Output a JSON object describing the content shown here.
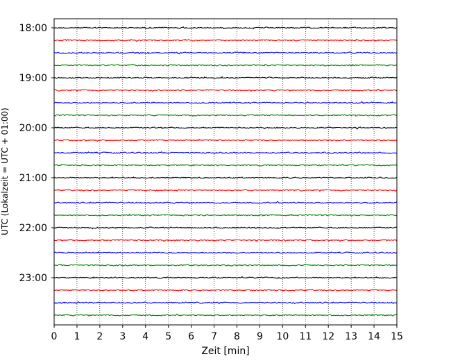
{
  "chart_data": {
    "type": "line",
    "title": "",
    "xlabel": "Zeit  [min]",
    "ylabel": "UTC (Lokalzeit = UTC + 01:00)",
    "xlim": [
      0,
      15
    ],
    "x_ticks": [
      0,
      1,
      2,
      3,
      4,
      5,
      6,
      7,
      8,
      9,
      10,
      11,
      12,
      13,
      14,
      15
    ],
    "x_tick_labels": [
      "0",
      "1",
      "2",
      "3",
      "4",
      "5",
      "6",
      "7",
      "8",
      "9",
      "10",
      "11",
      "12",
      "13",
      "14",
      "15"
    ],
    "y_tick_labels": [
      "18:00",
      "19:00",
      "20:00",
      "21:00",
      "22:00",
      "23:00"
    ],
    "grid": "vertical dotted at each minute",
    "trace_interval_minutes": 15,
    "traces": [
      {
        "start": "18:00",
        "color": "#000000"
      },
      {
        "start": "18:15",
        "color": "#ff0000"
      },
      {
        "start": "18:30",
        "color": "#0000ff"
      },
      {
        "start": "18:45",
        "color": "#008000"
      },
      {
        "start": "19:00",
        "color": "#000000"
      },
      {
        "start": "19:15",
        "color": "#ff0000"
      },
      {
        "start": "19:30",
        "color": "#0000ff"
      },
      {
        "start": "19:45",
        "color": "#008000"
      },
      {
        "start": "20:00",
        "color": "#000000"
      },
      {
        "start": "20:15",
        "color": "#ff0000"
      },
      {
        "start": "20:30",
        "color": "#0000ff"
      },
      {
        "start": "20:45",
        "color": "#008000"
      },
      {
        "start": "21:00",
        "color": "#000000"
      },
      {
        "start": "21:15",
        "color": "#ff0000"
      },
      {
        "start": "21:30",
        "color": "#0000ff"
      },
      {
        "start": "21:45",
        "color": "#008000"
      },
      {
        "start": "22:00",
        "color": "#000000"
      },
      {
        "start": "22:15",
        "color": "#ff0000"
      },
      {
        "start": "22:30",
        "color": "#0000ff"
      },
      {
        "start": "22:45",
        "color": "#008000"
      },
      {
        "start": "23:00",
        "color": "#000000"
      },
      {
        "start": "23:15",
        "color": "#ff0000"
      },
      {
        "start": "23:30",
        "color": "#0000ff"
      },
      {
        "start": "23:45",
        "color": "#008000"
      }
    ]
  }
}
